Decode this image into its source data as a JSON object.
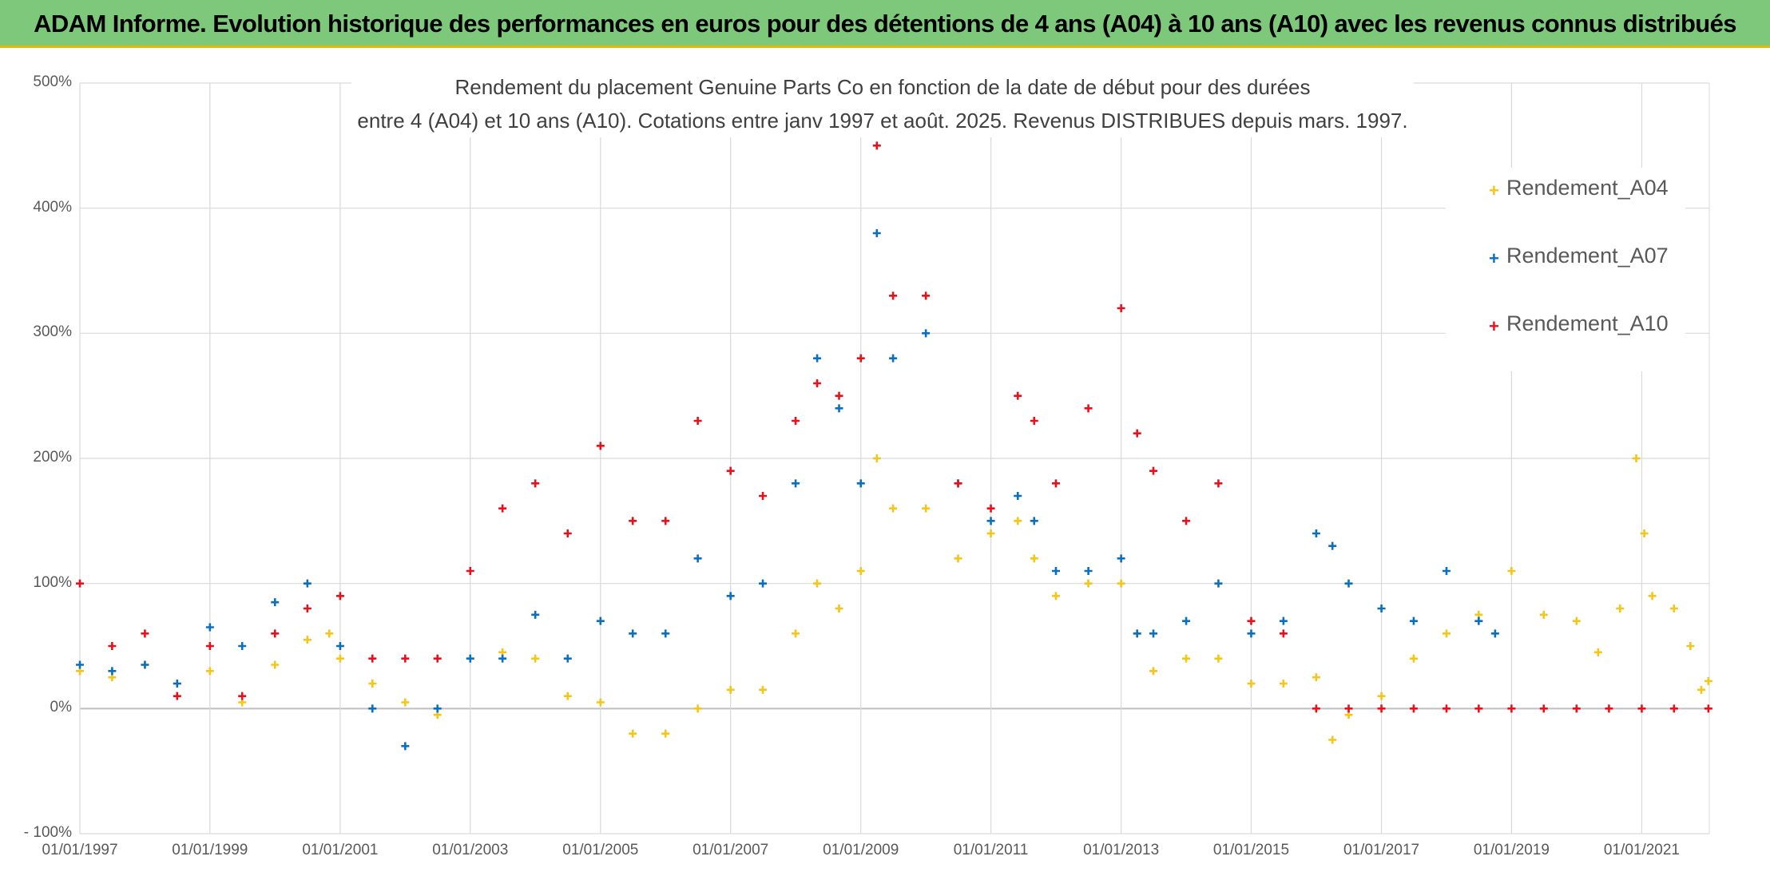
{
  "header": {
    "banner": "ADAM Informe. Evolution historique des performances en euros pour des détentions de 4 ans (A04) à 10 ans (A10) avec les revenus connus distribués"
  },
  "colors": {
    "banner_bg": "#7dc87a",
    "A04": "#f5c518",
    "A07": "#0b6fbf",
    "A10": "#e8101a",
    "grid": "#d9d9d9"
  },
  "chart_data": {
    "type": "scatter",
    "title_line1": "Rendement du placement Genuine Parts Co en fonction de la date de début pour des durées",
    "title_line2": "entre 4 (A04) et 10 ans (A10). Cotations entre janv 1997 et août. 2025. Revenus DISTRIBUES depuis mars. 1997.",
    "x_range": [
      "1997-01-01",
      "2022-01-15"
    ],
    "ylim": [
      -100,
      500
    ],
    "y_ticks": [
      "- 100%",
      "0%",
      "100%",
      "200%",
      "300%",
      "400%",
      "500%"
    ],
    "y_tick_values": [
      -100,
      0,
      100,
      200,
      300,
      400,
      500
    ],
    "x_ticks": [
      "01/01/1997",
      "01/01/1999",
      "01/01/2001",
      "01/01/2003",
      "01/01/2005",
      "01/01/2007",
      "01/01/2009",
      "01/01/2011",
      "01/01/2013",
      "01/01/2015",
      "01/01/2017",
      "01/01/2019",
      "01/01/2021"
    ],
    "grid": true,
    "legend_position": "top-right",
    "legend_marker": "+",
    "series": [
      {
        "name": "Rendement_A04",
        "color_key": "A04",
        "points": [
          [
            "1997-01-01",
            30
          ],
          [
            "1997-07-01",
            25
          ],
          [
            "1998-01-01",
            35
          ],
          [
            "1998-07-01",
            20
          ],
          [
            "1999-01-01",
            30
          ],
          [
            "1999-07-01",
            5
          ],
          [
            "2000-01-01",
            35
          ],
          [
            "2000-07-01",
            55
          ],
          [
            "2000-11-01",
            60
          ],
          [
            "2001-01-01",
            40
          ],
          [
            "2001-07-01",
            20
          ],
          [
            "2002-01-01",
            5
          ],
          [
            "2002-07-01",
            -5
          ],
          [
            "2003-01-01",
            40
          ],
          [
            "2003-07-01",
            45
          ],
          [
            "2004-01-01",
            40
          ],
          [
            "2004-07-01",
            10
          ],
          [
            "2005-01-01",
            5
          ],
          [
            "2005-07-01",
            -20
          ],
          [
            "2006-01-01",
            -20
          ],
          [
            "2006-07-01",
            0
          ],
          [
            "2007-01-01",
            15
          ],
          [
            "2007-07-01",
            15
          ],
          [
            "2008-01-01",
            60
          ],
          [
            "2008-05-01",
            100
          ],
          [
            "2008-09-01",
            80
          ],
          [
            "2009-01-01",
            110
          ],
          [
            "2009-04-01",
            200
          ],
          [
            "2009-07-01",
            160
          ],
          [
            "2010-01-01",
            160
          ],
          [
            "2010-07-01",
            120
          ],
          [
            "2011-01-01",
            140
          ],
          [
            "2011-06-01",
            150
          ],
          [
            "2011-09-01",
            120
          ],
          [
            "2012-01-01",
            90
          ],
          [
            "2012-07-01",
            100
          ],
          [
            "2013-01-01",
            100
          ],
          [
            "2013-04-01",
            60
          ],
          [
            "2013-07-01",
            30
          ],
          [
            "2014-01-01",
            40
          ],
          [
            "2014-07-01",
            40
          ],
          [
            "2015-01-01",
            20
          ],
          [
            "2015-07-01",
            20
          ],
          [
            "2016-01-01",
            25
          ],
          [
            "2016-04-01",
            -25
          ],
          [
            "2016-07-01",
            -5
          ],
          [
            "2017-01-01",
            10
          ],
          [
            "2017-07-01",
            40
          ],
          [
            "2018-01-01",
            60
          ],
          [
            "2018-07-01",
            75
          ],
          [
            "2019-01-01",
            110
          ],
          [
            "2019-07-01",
            75
          ],
          [
            "2020-01-01",
            70
          ],
          [
            "2020-05-01",
            45
          ],
          [
            "2020-09-01",
            80
          ],
          [
            "2020-12-01",
            200
          ],
          [
            "2021-01-15",
            140
          ],
          [
            "2021-03-01",
            90
          ],
          [
            "2021-07-01",
            80
          ],
          [
            "2021-10-01",
            50
          ],
          [
            "2021-12-01",
            15
          ],
          [
            "2022-01-10",
            22
          ]
        ]
      },
      {
        "name": "Rendement_A07",
        "color_key": "A07",
        "points": [
          [
            "1997-01-01",
            35
          ],
          [
            "1997-07-01",
            30
          ],
          [
            "1998-01-01",
            35
          ],
          [
            "1998-07-01",
            20
          ],
          [
            "1999-01-01",
            65
          ],
          [
            "1999-07-01",
            50
          ],
          [
            "2000-01-01",
            85
          ],
          [
            "2000-07-01",
            100
          ],
          [
            "2001-01-01",
            50
          ],
          [
            "2001-07-01",
            0
          ],
          [
            "2002-01-01",
            -30
          ],
          [
            "2002-07-01",
            0
          ],
          [
            "2003-01-01",
            40
          ],
          [
            "2003-07-01",
            40
          ],
          [
            "2004-01-01",
            75
          ],
          [
            "2004-07-01",
            40
          ],
          [
            "2005-01-01",
            70
          ],
          [
            "2005-07-01",
            60
          ],
          [
            "2006-01-01",
            60
          ],
          [
            "2006-07-01",
            120
          ],
          [
            "2007-01-01",
            90
          ],
          [
            "2007-07-01",
            100
          ],
          [
            "2008-01-01",
            180
          ],
          [
            "2008-05-01",
            280
          ],
          [
            "2008-09-01",
            240
          ],
          [
            "2009-01-01",
            180
          ],
          [
            "2009-04-01",
            380
          ],
          [
            "2009-07-01",
            280
          ],
          [
            "2010-01-01",
            300
          ],
          [
            "2010-07-01",
            180
          ],
          [
            "2011-01-01",
            150
          ],
          [
            "2011-06-01",
            170
          ],
          [
            "2011-09-01",
            150
          ],
          [
            "2012-01-01",
            110
          ],
          [
            "2012-07-01",
            110
          ],
          [
            "2013-01-01",
            120
          ],
          [
            "2013-04-01",
            60
          ],
          [
            "2013-07-01",
            60
          ],
          [
            "2014-01-01",
            70
          ],
          [
            "2014-07-01",
            100
          ],
          [
            "2015-01-01",
            60
          ],
          [
            "2015-07-01",
            70
          ],
          [
            "2016-01-01",
            140
          ],
          [
            "2016-04-01",
            130
          ],
          [
            "2016-07-01",
            100
          ],
          [
            "2017-01-01",
            80
          ],
          [
            "2017-07-01",
            70
          ],
          [
            "2018-01-01",
            110
          ],
          [
            "2018-07-01",
            70
          ],
          [
            "2018-10-01",
            60
          ]
        ]
      },
      {
        "name": "Rendement_A10",
        "color_key": "A10",
        "points": [
          [
            "1997-01-01",
            100
          ],
          [
            "1997-07-01",
            50
          ],
          [
            "1998-01-01",
            60
          ],
          [
            "1998-07-01",
            10
          ],
          [
            "1999-01-01",
            50
          ],
          [
            "1999-07-01",
            10
          ],
          [
            "2000-01-01",
            60
          ],
          [
            "2000-07-01",
            80
          ],
          [
            "2001-01-01",
            90
          ],
          [
            "2001-07-01",
            40
          ],
          [
            "2002-01-01",
            40
          ],
          [
            "2002-07-01",
            40
          ],
          [
            "2003-01-01",
            110
          ],
          [
            "2003-07-01",
            160
          ],
          [
            "2004-01-01",
            180
          ],
          [
            "2004-07-01",
            140
          ],
          [
            "2005-01-01",
            210
          ],
          [
            "2005-07-01",
            150
          ],
          [
            "2006-01-01",
            150
          ],
          [
            "2006-07-01",
            230
          ],
          [
            "2007-01-01",
            190
          ],
          [
            "2007-07-01",
            170
          ],
          [
            "2008-01-01",
            230
          ],
          [
            "2008-05-01",
            260
          ],
          [
            "2008-09-01",
            250
          ],
          [
            "2009-01-01",
            280
          ],
          [
            "2009-04-01",
            450
          ],
          [
            "2009-07-01",
            330
          ],
          [
            "2010-01-01",
            330
          ],
          [
            "2010-07-01",
            180
          ],
          [
            "2011-01-01",
            160
          ],
          [
            "2011-06-01",
            250
          ],
          [
            "2011-09-01",
            230
          ],
          [
            "2012-01-01",
            180
          ],
          [
            "2012-07-01",
            240
          ],
          [
            "2013-01-01",
            320
          ],
          [
            "2013-04-01",
            220
          ],
          [
            "2013-07-01",
            190
          ],
          [
            "2014-01-01",
            150
          ],
          [
            "2014-07-01",
            180
          ],
          [
            "2015-01-01",
            70
          ],
          [
            "2015-07-01",
            60
          ],
          [
            "2016-01-01",
            0
          ],
          [
            "2016-07-01",
            0
          ],
          [
            "2017-01-01",
            0
          ],
          [
            "2017-07-01",
            0
          ],
          [
            "2018-01-01",
            0
          ],
          [
            "2018-07-01",
            0
          ],
          [
            "2019-01-01",
            0
          ],
          [
            "2019-07-01",
            0
          ],
          [
            "2020-01-01",
            0
          ],
          [
            "2020-07-01",
            0
          ],
          [
            "2021-01-01",
            0
          ],
          [
            "2021-07-01",
            0
          ],
          [
            "2022-01-10",
            0
          ]
        ]
      }
    ]
  }
}
